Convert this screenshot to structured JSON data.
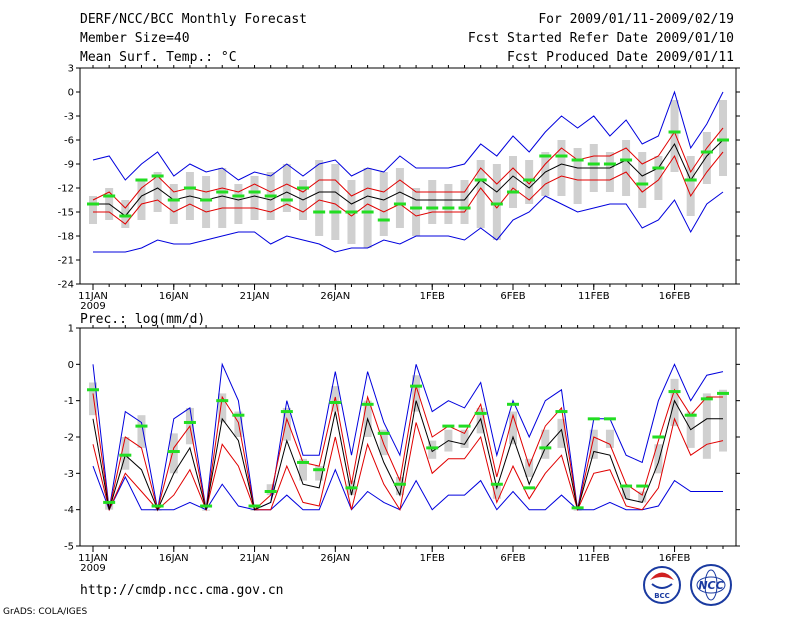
{
  "header": {
    "title": "DERF/NCC/BCC Monthly Forecast",
    "member_size": "Member Size=40",
    "variable": "Mean Surf. Temp.: °C",
    "period": "For 2009/01/11-2009/02/19",
    "started": "Fcst Started Refer Date 2009/01/10",
    "produced": "Fcst Produced Date 2009/01/11"
  },
  "footer": {
    "url": "http://cmdp.ncc.cma.gov.cn",
    "credit": "GrADS: COLA/IGES",
    "logo_bcc": "BCC",
    "logo_ncc": "NCC"
  },
  "colors": {
    "ensemble_range": "#0000dd",
    "spread": "#e00000",
    "ensemble_mean": "#000000",
    "member_box": "#d0d0d0",
    "observed": "#22dd22"
  },
  "chart_data": [
    {
      "type": "line",
      "title": "Mean Surf. Temp.: °C",
      "ylim": [
        -24,
        3
      ],
      "yticks": [
        3,
        0,
        -3,
        -6,
        -9,
        -12,
        -15,
        -18,
        -21,
        -24
      ],
      "xlim": [
        0,
        40
      ],
      "xticks": [
        {
          "day": 0,
          "label": "11JAN",
          "sub": "2009"
        },
        {
          "day": 5,
          "label": "16JAN"
        },
        {
          "day": 10,
          "label": "21JAN"
        },
        {
          "day": 15,
          "label": "26JAN"
        },
        {
          "day": 21,
          "label": "1FEB"
        },
        {
          "day": 26,
          "label": "6FEB"
        },
        {
          "day": 31,
          "label": "11FEB"
        },
        {
          "day": 36,
          "label": "16FEB"
        }
      ],
      "days": [
        0,
        1,
        2,
        3,
        4,
        5,
        6,
        7,
        8,
        9,
        10,
        11,
        12,
        13,
        14,
        15,
        16,
        17,
        18,
        19,
        20,
        21,
        22,
        23,
        24,
        25,
        26,
        27,
        28,
        29,
        30,
        31,
        32,
        33,
        34,
        35,
        36,
        37,
        38,
        39
      ],
      "max": [
        -8.5,
        -8,
        -11,
        -9,
        -7.5,
        -10.5,
        -9,
        -10,
        -9.5,
        -11,
        -10,
        -10.5,
        -9,
        -10.5,
        -9,
        -8.5,
        -10.5,
        -9.5,
        -10,
        -8,
        -9.5,
        -9.5,
        -9.5,
        -9,
        -6.5,
        -8,
        -5.5,
        -7.5,
        -5,
        -3,
        -4.5,
        -3,
        -5.5,
        -3.5,
        -6.5,
        -5.5,
        0,
        -7,
        -4,
        0
      ],
      "upper": [
        -13.5,
        -12.5,
        -14.5,
        -12,
        -10.5,
        -12.5,
        -12,
        -12.5,
        -12,
        -12.5,
        -11.5,
        -12.5,
        -11.5,
        -12.5,
        -11,
        -11,
        -13,
        -12,
        -12.5,
        -11,
        -12.5,
        -12.5,
        -12.5,
        -12.5,
        -9.5,
        -11.5,
        -9.5,
        -11.5,
        -9,
        -7,
        -8.5,
        -8,
        -8,
        -7,
        -9,
        -8,
        -5,
        -10,
        -7,
        -4.5
      ],
      "mean": [
        -14,
        -14,
        -15.5,
        -13,
        -12,
        -13.5,
        -13,
        -13.5,
        -13,
        -13.5,
        -13,
        -13.5,
        -12.5,
        -13.5,
        -12.5,
        -12.5,
        -14,
        -13,
        -13.5,
        -12.5,
        -13.5,
        -13.5,
        -13.5,
        -13.5,
        -11,
        -12.5,
        -10.5,
        -12,
        -10,
        -9,
        -9.5,
        -9.5,
        -9.5,
        -8.5,
        -10.5,
        -9.5,
        -6.5,
        -11,
        -8,
        -6
      ],
      "lower": [
        -15,
        -15,
        -16.5,
        -14,
        -13.5,
        -15,
        -14,
        -15,
        -14.5,
        -14.5,
        -14.5,
        -15,
        -14,
        -15,
        -13.5,
        -14,
        -15.5,
        -14,
        -15,
        -14,
        -15.5,
        -15,
        -15,
        -15,
        -12,
        -14.5,
        -12,
        -13.5,
        -11.5,
        -10.5,
        -11,
        -11,
        -11,
        -10,
        -12.5,
        -11,
        -8,
        -13,
        -10,
        -7.5
      ],
      "min": [
        -20,
        -20,
        -20,
        -19.5,
        -18.5,
        -19,
        -19,
        -18.5,
        -18,
        -17.5,
        -17.5,
        -19,
        -18,
        -18.5,
        -19,
        -20,
        -19.5,
        -19.5,
        -18.5,
        -19,
        -18,
        -18,
        -18,
        -18.5,
        -17,
        -18.5,
        -16,
        -15,
        -13,
        -14,
        -15,
        -14.5,
        -14,
        -14,
        -17,
        -16,
        -13.5,
        -17.5,
        -14,
        -12.5
      ],
      "box_top": [
        -13,
        -12,
        -13.5,
        -11,
        -10,
        -11.5,
        -10,
        -10.5,
        -9.5,
        -11.5,
        -10.5,
        -10,
        -9,
        -11,
        -8.5,
        -9,
        -11,
        -9.5,
        -10,
        -9.5,
        -12,
        -11,
        -11.5,
        -11,
        -8.5,
        -9,
        -8,
        -8.5,
        -7.5,
        -6,
        -7,
        -6.5,
        -7.5,
        -6,
        -7.5,
        -8,
        -1,
        -8,
        -5,
        -1
      ],
      "box_bottom": [
        -16.5,
        -16,
        -17,
        -16,
        -15,
        -16.5,
        -16,
        -17,
        -17,
        -16.5,
        -16,
        -16,
        -15,
        -16,
        -18,
        -18.5,
        -19,
        -19.5,
        -18,
        -17,
        -18,
        -16.5,
        -16.5,
        -16.5,
        -17,
        -18.5,
        -14.5,
        -14,
        -13,
        -13,
        -14,
        -12.5,
        -12.5,
        -13,
        -14.5,
        -13.5,
        -10,
        -15.5,
        -11.5,
        -10.5
      ],
      "observed": [
        -14,
        -13,
        -15.5,
        -11,
        -10.5,
        -13.5,
        -12,
        -13.5,
        -12.5,
        -13,
        -12.5,
        -13,
        -13.5,
        -12,
        -15,
        -15,
        -15,
        -15,
        -16,
        -14,
        -14.5,
        -14.5,
        -14.5,
        -14.5,
        -11,
        -14,
        -12.5,
        -11,
        -8,
        -8,
        -8.5,
        -9,
        -9,
        -8.5,
        -11.5,
        -9.5,
        -5,
        -11,
        -7.5,
        -6
      ]
    },
    {
      "type": "line",
      "title": "Prec.: log(mm/d)",
      "ylim": [
        -5,
        1
      ],
      "yticks": [
        1,
        0,
        -1,
        -2,
        -3,
        -4,
        -5
      ],
      "xlim": [
        0,
        40
      ],
      "xticks": [
        {
          "day": 0,
          "label": "11JAN",
          "sub": "2009"
        },
        {
          "day": 5,
          "label": "16JAN"
        },
        {
          "day": 10,
          "label": "21JAN"
        },
        {
          "day": 15,
          "label": "26JAN"
        },
        {
          "day": 21,
          "label": "1FEB"
        },
        {
          "day": 26,
          "label": "6FEB"
        },
        {
          "day": 31,
          "label": "11FEB"
        },
        {
          "day": 36,
          "label": "16FEB"
        }
      ],
      "days": [
        0,
        1,
        2,
        3,
        4,
        5,
        6,
        7,
        8,
        9,
        10,
        11,
        12,
        13,
        14,
        15,
        16,
        17,
        18,
        19,
        20,
        21,
        22,
        23,
        24,
        25,
        26,
        27,
        28,
        29,
        30,
        31,
        32,
        33,
        34,
        35,
        36,
        37,
        38,
        39
      ],
      "max": [
        0,
        -4,
        -1.3,
        -1.6,
        -4,
        -1.5,
        -1.2,
        -4,
        0,
        -1,
        -4,
        -3.8,
        -1,
        -2.5,
        -2.5,
        -0.2,
        -2.5,
        -0.2,
        -1.6,
        -2.5,
        0,
        -1.3,
        -1,
        -1.2,
        -0.5,
        -2.5,
        -1,
        -2,
        -1,
        -0.7,
        -4,
        -1.5,
        -1.5,
        -2.5,
        -2.7,
        -1,
        0,
        -1,
        -0.3,
        -0.2
      ],
      "upper": [
        -0.8,
        -4,
        -2,
        -2.3,
        -4,
        -2.3,
        -1.7,
        -4,
        -0.9,
        -1.6,
        -4,
        -3.6,
        -1.5,
        -2.7,
        -2.8,
        -0.9,
        -3.3,
        -0.9,
        -2.2,
        -3.2,
        -0.6,
        -2,
        -1.7,
        -1.9,
        -1.1,
        -3.1,
        -1.4,
        -2.8,
        -1.7,
        -1.2,
        -4,
        -2,
        -2.2,
        -3.3,
        -3.6,
        -2.1,
        -0.7,
        -1.4,
        -0.9,
        -0.9
      ],
      "mean": [
        -1.5,
        -4,
        -2.5,
        -2.9,
        -4,
        -3,
        -2.3,
        -4,
        -1.5,
        -2.1,
        -4,
        -3.8,
        -2.1,
        -3.3,
        -3.4,
        -1.3,
        -3.6,
        -1.5,
        -2.7,
        -3.6,
        -1,
        -2.4,
        -2.1,
        -2.2,
        -1.5,
        -3.4,
        -2,
        -3.3,
        -2.3,
        -1.8,
        -4,
        -2.4,
        -2.5,
        -3.7,
        -3.8,
        -2.7,
        -1,
        -1.8,
        -1.5,
        -1.5
      ],
      "lower": [
        -2.2,
        -4,
        -3,
        -3.5,
        -4,
        -3.6,
        -2.9,
        -4,
        -2.2,
        -2.8,
        -4,
        -4,
        -2.8,
        -3.8,
        -3.9,
        -2,
        -4,
        -2.2,
        -3.3,
        -4,
        -1.6,
        -3,
        -2.6,
        -2.6,
        -2,
        -3.8,
        -2.8,
        -3.7,
        -3,
        -2.5,
        -4,
        -3,
        -2.9,
        -3.9,
        -4,
        -3.4,
        -1.5,
        -2.5,
        -2.2,
        -2.1
      ],
      "min": [
        -2.8,
        -4,
        -3.1,
        -4,
        -4,
        -4,
        -3.8,
        -4,
        -3.3,
        -3.9,
        -4,
        -4,
        -3.6,
        -4,
        -4,
        -2.9,
        -4,
        -3.5,
        -3.8,
        -4,
        -3.2,
        -4,
        -3.6,
        -3.6,
        -3.2,
        -4,
        -3.5,
        -4,
        -4,
        -3.6,
        -4,
        -4,
        -3.8,
        -4,
        -4,
        -3.9,
        -3.2,
        -3.5,
        -3.5,
        -3.5
      ],
      "box_top": [
        -0.5,
        -3.8,
        -2,
        -1.4,
        -4,
        -1.9,
        -1.2,
        -4,
        -0.8,
        -1.3,
        -4,
        -3.3,
        -1.2,
        -2.6,
        -2.8,
        -0.6,
        -3.2,
        -1,
        -1.8,
        -3.1,
        -0.3,
        -2.1,
        -1.8,
        -1.8,
        -1.2,
        -3.3,
        -1.3,
        -2.6,
        -1.8,
        -1.5,
        -4,
        -1.8,
        -1.8,
        -3.4,
        -3.5,
        -2.2,
        -0.4,
        -1.3,
        -0.8,
        -0.7
      ],
      "box_bottom": [
        -1.4,
        -4,
        -2.9,
        -2.3,
        -4,
        -3,
        -2.2,
        -4,
        -1.6,
        -2,
        -4,
        -3.6,
        -2.1,
        -3.2,
        -3.2,
        -1.3,
        -3.6,
        -2,
        -2.5,
        -3.6,
        -1.3,
        -2.6,
        -2.4,
        -2.3,
        -1.9,
        -3.7,
        -2.2,
        -3.1,
        -2.6,
        -2.3,
        -4,
        -2.6,
        -2.3,
        -3.7,
        -3.8,
        -3,
        -1.7,
        -2.3,
        -2.6,
        -2.4
      ],
      "observed": [
        -0.7,
        -3.8,
        -2.5,
        -1.7,
        -3.9,
        -2.4,
        -1.6,
        -3.9,
        -1,
        -1.4,
        -3.9,
        -3.5,
        -1.3,
        -2.7,
        -2.9,
        -1.05,
        -3.4,
        -1.1,
        -1.9,
        -3.3,
        -0.6,
        -2.3,
        -1.7,
        -1.7,
        -1.35,
        -3.3,
        -1.1,
        -3.4,
        -2.3,
        -1.3,
        -3.95,
        -1.5,
        -1.5,
        -3.35,
        -3.35,
        -2,
        -0.75,
        -1.4,
        -0.95,
        -0.8
      ]
    }
  ]
}
